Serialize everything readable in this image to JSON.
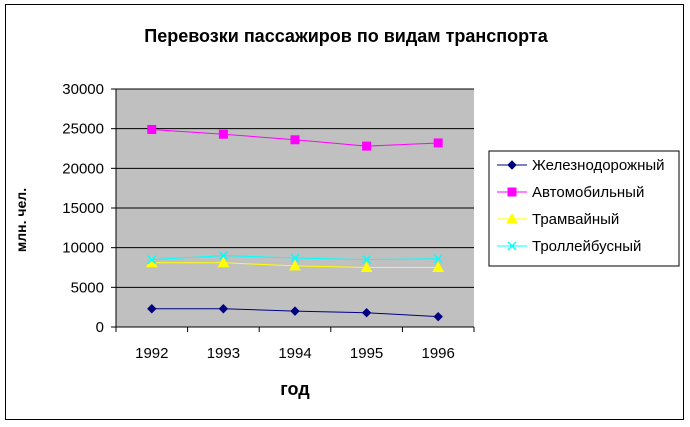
{
  "chart_data": {
    "type": "line",
    "title": "Перевозки пассажиров по видам транспорта",
    "xlabel": "год",
    "ylabel": "млн. чел.",
    "categories": [
      "1992",
      "1993",
      "1994",
      "1995",
      "1996"
    ],
    "ylim": [
      0,
      30000
    ],
    "yticks": [
      "0",
      "5000",
      "10000",
      "15000",
      "20000",
      "25000",
      "30000"
    ],
    "grid": true,
    "legend_position": "right",
    "plot_background": "#c0c0c0",
    "series": [
      {
        "name": "Железнодорожный",
        "values": [
          2300,
          2300,
          2000,
          1800,
          1300
        ],
        "color": "#000080",
        "marker": "diamond"
      },
      {
        "name": "Автомобильный",
        "values": [
          24900,
          24300,
          23600,
          22800,
          23200
        ],
        "color": "#ff00ff",
        "marker": "square"
      },
      {
        "name": "Трамвайный",
        "values": [
          8100,
          8100,
          7700,
          7500,
          7500
        ],
        "color": "#ffff00",
        "marker": "triangle"
      },
      {
        "name": "Троллейбусный",
        "values": [
          8500,
          9000,
          8700,
          8500,
          8600
        ],
        "color": "#00ffff",
        "marker": "x"
      }
    ]
  }
}
